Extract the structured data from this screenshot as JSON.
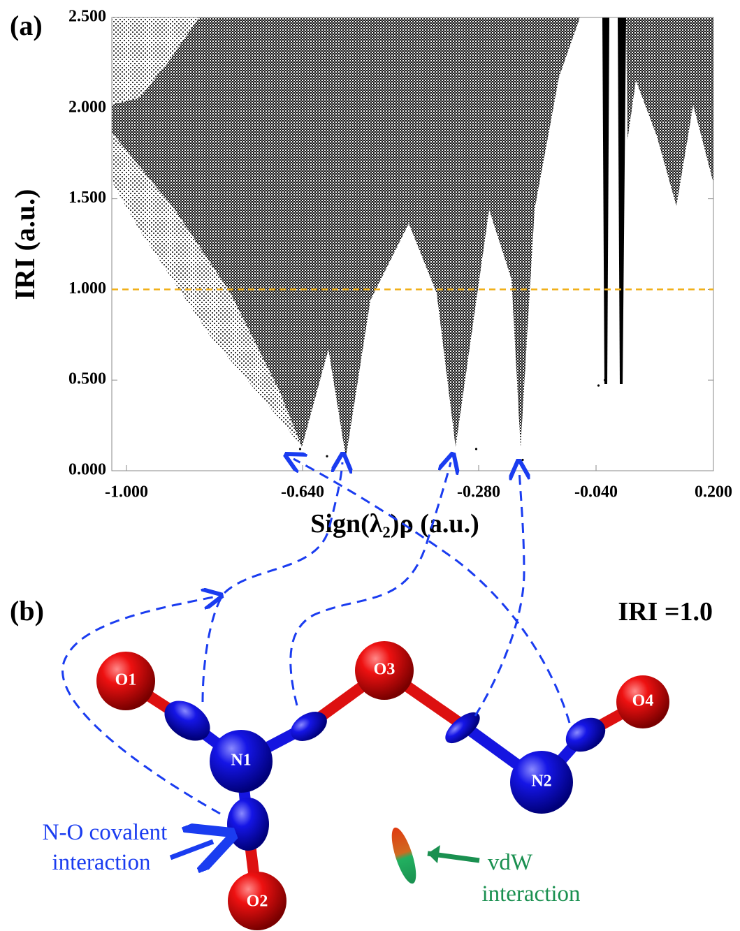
{
  "chart_data": {
    "type": "scatter",
    "panel_label": "(a)",
    "x_label": "Sign(λ₂)ρ (a.u.)",
    "y_label": "IRI (a.u.)",
    "x": [
      -0.645,
      -0.59,
      -0.285,
      -0.19,
      -0.035,
      -0.022
    ],
    "values": [
      0.12,
      0.08,
      0.12,
      0.06,
      0.47,
      0.5
    ],
    "color": "#000000",
    "xlim": [
      -1.03,
      0.2
    ],
    "ylim": [
      0,
      2.5
    ],
    "xticks": [
      {
        "value": -1.0,
        "label": "-1.000"
      },
      {
        "value": -0.64,
        "label": "-0.640"
      },
      {
        "value": -0.28,
        "label": "-0.280"
      },
      {
        "value": -0.04,
        "label": "-0.040"
      },
      {
        "value": 0.2,
        "label": "0.200"
      }
    ],
    "yticks": [
      {
        "value": 0,
        "label": "0.000"
      },
      {
        "value": 0.5,
        "label": "0.500"
      },
      {
        "value": 1.0,
        "label": "1.000"
      },
      {
        "value": 1.5,
        "label": "1.500"
      },
      {
        "value": 2.0,
        "label": "2.000"
      },
      {
        "value": 2.5,
        "label": "2.500"
      }
    ],
    "threshold": 1.0,
    "threshold_color": "#f0b01a"
  },
  "panel_b": {
    "panel_label": "(b)",
    "isovalue": "IRI =1.0",
    "atoms": [
      "O1",
      "N1",
      "O2",
      "O3",
      "N2",
      "O4"
    ],
    "covalent_note": [
      "N-O covalent",
      "interaction"
    ],
    "vdw_note": [
      "vdW",
      "interaction"
    ]
  }
}
